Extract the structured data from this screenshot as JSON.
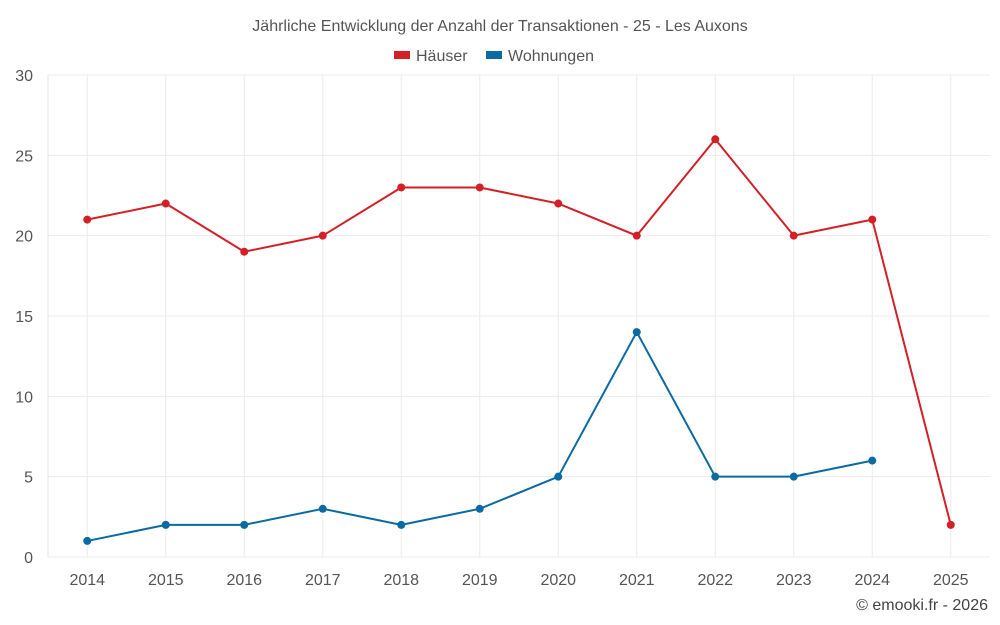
{
  "chart_data": {
    "type": "line",
    "title": "Jährliche Entwicklung der Anzahl der Transaktionen - 25 - Les Auxons",
    "xlabel": "",
    "ylabel": "",
    "categories": [
      "2014",
      "2015",
      "2016",
      "2017",
      "2018",
      "2019",
      "2020",
      "2021",
      "2022",
      "2023",
      "2024",
      "2025"
    ],
    "ylim": [
      0,
      30
    ],
    "yticks": [
      0,
      5,
      10,
      15,
      20,
      25,
      30
    ],
    "grid": true,
    "legend_position": "top-center",
    "series": [
      {
        "name": "Häuser",
        "color": "#d32027",
        "values": [
          21,
          22,
          19,
          20,
          23,
          23,
          22,
          20,
          26,
          20,
          21,
          2
        ]
      },
      {
        "name": "Wohnungen",
        "color": "#0b6aa2",
        "values": [
          1,
          2,
          2,
          3,
          2,
          3,
          5,
          14,
          5,
          5,
          6,
          null
        ]
      }
    ]
  },
  "credit": "© emooki.fr - 2026"
}
